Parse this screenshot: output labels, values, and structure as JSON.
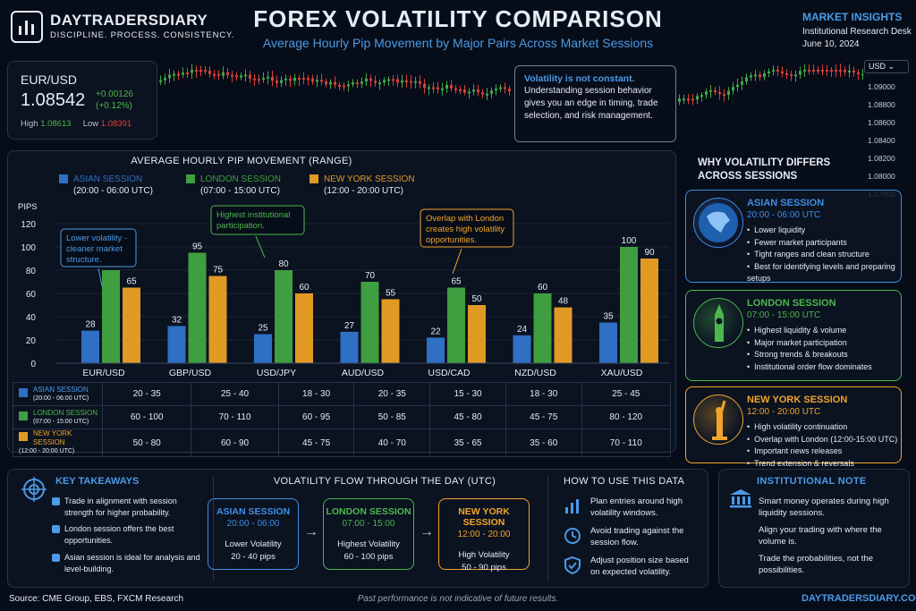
{
  "brand": {
    "name": "DAYTRADERSDIARY",
    "tagline": "DISCIPLINE. PROCESS. CONSISTENCY."
  },
  "header": {
    "title": "FOREX VOLATILITY COMPARISON",
    "subtitle": "Average Hourly Pip Movement by Major Pairs Across Market Sessions"
  },
  "market_insights": {
    "title": "MARKET INSIGHTS",
    "desk": "Institutional Research Desk",
    "date": "June 10, 2024"
  },
  "ticker": {
    "symbol": "EUR/USD",
    "price": "1.08542",
    "change": "+0.00126",
    "change_pct": "(+0.12%)",
    "high_label": "High",
    "high": "1.08613",
    "low_label": "Low",
    "low": "1.08391",
    "currency": "USD",
    "price_scale": [
      "1.09000",
      "1.08800",
      "1.08600",
      "1.08400",
      "1.08200",
      "1.08000",
      "1.07800"
    ]
  },
  "callout_main": {
    "headline": "Volatility is not constant.",
    "body": "Understanding session behavior gives you an edge in timing, trade selection, and risk management."
  },
  "chart_data": {
    "type": "bar",
    "title": "AVERAGE HOURLY PIP MOVEMENT (RANGE)",
    "ylabel": "PIPS",
    "ylim": [
      0,
      120
    ],
    "yticks": [
      0,
      20,
      40,
      60,
      80,
      100,
      120
    ],
    "categories": [
      "EUR/USD",
      "GBP/USD",
      "USD/JPY",
      "AUD/USD",
      "USD/CAD",
      "NZD/USD",
      "XAU/USD"
    ],
    "series": [
      {
        "name": "ASIAN SESSION",
        "time": "(20:00 - 06:00 UTC)",
        "color": "#2f6fc4",
        "values": [
          28,
          32,
          25,
          27,
          22,
          24,
          35
        ]
      },
      {
        "name": "LONDON SESSION",
        "time": "(07:00 - 15:00 UTC)",
        "color": "#3f9e3f",
        "values": [
          80,
          95,
          80,
          70,
          65,
          60,
          100
        ]
      },
      {
        "name": "NEW YORK SESSION",
        "time": "(12:00 - 20:00 UTC)",
        "color": "#e09a24",
        "values": [
          65,
          75,
          60,
          55,
          50,
          48,
          90
        ]
      }
    ],
    "annotations": [
      {
        "text": "Lower volatility - cleaner market structure.",
        "color": "#4a9be8"
      },
      {
        "text": "Highest institutional participation.",
        "color": "#4cb84c"
      },
      {
        "text": "Overlap with London creates high volatility opportunities.",
        "color": "#f0a52b"
      }
    ]
  },
  "table": {
    "rows": [
      {
        "name": "ASIAN SESSION",
        "time": "(20:00 - 06:00 UTC)",
        "color": "#2f6fc4",
        "cells": [
          "20 - 35",
          "25 - 40",
          "18 - 30",
          "20 - 35",
          "15 - 30",
          "18 - 30",
          "25 - 45"
        ]
      },
      {
        "name": "LONDON SESSION",
        "time": "(07:00 - 15:00 UTC)",
        "color": "#3f9e3f",
        "cells": [
          "60 - 100",
          "70 - 110",
          "60 - 95",
          "50 - 85",
          "45 - 80",
          "45 - 75",
          "80 - 120"
        ]
      },
      {
        "name": "NEW YORK SESSION",
        "time": "(12:00 - 20:00 UTC)",
        "color": "#e09a24",
        "cells": [
          "50 - 80",
          "60 - 90",
          "45 - 75",
          "40 - 70",
          "35 - 65",
          "35 - 60",
          "70 - 110"
        ]
      }
    ]
  },
  "why": {
    "title": "WHY VOLATILITY DIFFERS ACROSS SESSIONS",
    "sessions": [
      {
        "name": "ASIAN SESSION",
        "time": "20:00 - 06:00 UTC",
        "icon": "globe-asia-icon",
        "color": "#3e8ee6",
        "points": [
          "Lower liquidity",
          "Fewer market participants",
          "Tight ranges and clean structure",
          "Best for identifying levels and preparing setups"
        ]
      },
      {
        "name": "LONDON SESSION",
        "time": "07:00 - 15:00 UTC",
        "icon": "big-ben-icon",
        "color": "#4cb84c",
        "points": [
          "Highest liquidity & volume",
          "Major market participation",
          "Strong trends & breakouts",
          "Institutional order flow dominates"
        ]
      },
      {
        "name": "NEW YORK SESSION",
        "time": "12:00 - 20:00 UTC",
        "icon": "statue-of-liberty-icon",
        "color": "#f0a52b",
        "points": [
          "High volatility continuation",
          "Overlap with London (12:00-15:00 UTC)",
          "Important news releases",
          "Trend extension & reversals"
        ]
      }
    ]
  },
  "key_takeaways": {
    "title": "KEY TAKEAWAYS",
    "items": [
      "Trade in alignment with session strength for higher probability.",
      "London session offers the best opportunities.",
      "Asian session is ideal for analysis and level-building."
    ]
  },
  "flow": {
    "title": "VOLATILITY FLOW THROUGH THE DAY (UTC)",
    "steps": [
      {
        "name": "ASIAN SESSION",
        "time": "20:00 - 06:00",
        "level": "Lower Volatility",
        "range": "20 - 40 pips",
        "color": "#3e8ee6"
      },
      {
        "name": "LONDON SESSION",
        "time": "07:00 - 15:00",
        "level": "Highest Volatility",
        "range": "60 - 100 pips",
        "color": "#4cb84c"
      },
      {
        "name": "NEW YORK SESSION",
        "time": "12:00 - 20:00",
        "level": "High Volatility",
        "range": "50 - 90 pips",
        "color": "#f0a52b"
      }
    ]
  },
  "how_to_use": {
    "title": "HOW TO USE THIS DATA",
    "items": [
      {
        "icon": "bar-chart-icon",
        "text": "Plan entries around high volatility windows."
      },
      {
        "icon": "clock-icon",
        "text": "Avoid trading against the session flow."
      },
      {
        "icon": "shield-check-icon",
        "text": "Adjust position size based on expected volatility."
      }
    ]
  },
  "institutional_note": {
    "title": "INSTITUTIONAL NOTE",
    "lines": [
      "Smart money operates during high liquidity sessions.",
      "Align your trading with where the volume is.",
      "Trade the probabilities, not the possibilities."
    ]
  },
  "footer": {
    "source": "Source: CME Group, EBS, FXCM Research",
    "disclaimer": "Past performance is not indicative of future results.",
    "url": "DAYTRADERSDIARY.COM"
  }
}
